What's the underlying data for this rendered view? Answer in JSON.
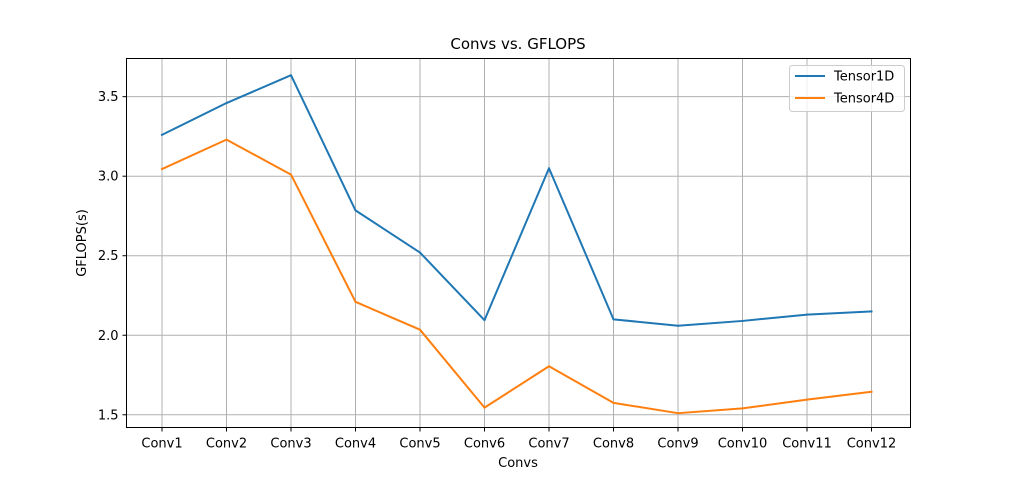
{
  "chart_data": {
    "type": "line",
    "title": "Convs vs. GFLOPS",
    "xlabel": "Convs",
    "ylabel": "GFLOPS(s)",
    "categories": [
      "Conv1",
      "Conv2",
      "Conv3",
      "Conv4",
      "Conv5",
      "Conv6",
      "Conv7",
      "Conv8",
      "Conv9",
      "Conv10",
      "Conv11",
      "Conv12"
    ],
    "ylim": [
      1.42,
      3.74
    ],
    "yticks": [
      "1.5",
      "2.0",
      "2.5",
      "3.0",
      "3.5"
    ],
    "grid": true,
    "legend_position": "top-right",
    "series": [
      {
        "name": "Tensor1D",
        "color": "#1f77b4",
        "values": [
          3.26,
          3.46,
          3.635,
          2.785,
          2.52,
          2.095,
          3.05,
          2.1,
          2.06,
          2.09,
          2.13,
          2.15
        ]
      },
      {
        "name": "Tensor4D",
        "color": "#ff7f0e",
        "values": [
          3.045,
          3.23,
          3.01,
          2.21,
          2.035,
          1.545,
          1.805,
          1.575,
          1.51,
          1.54,
          1.595,
          1.645
        ]
      }
    ]
  }
}
